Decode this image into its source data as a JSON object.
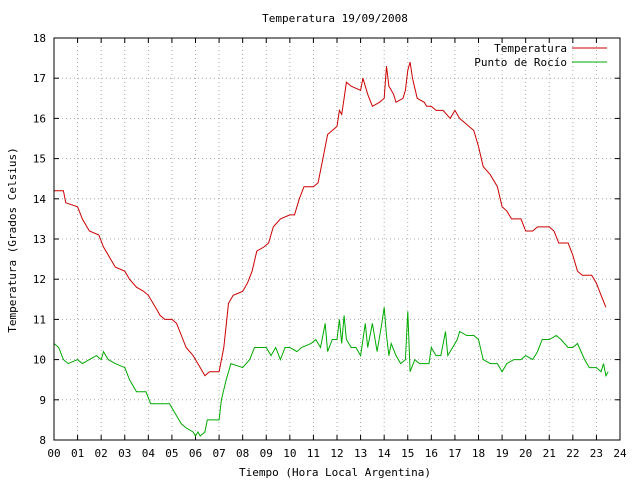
{
  "chart_data": {
    "type": "line",
    "title": "Temperatura 19/09/2008",
    "xlabel": "Tiempo (Hora Local Argentina)",
    "ylabel": "Temperatura (Grados Celsius)",
    "xlim": [
      0,
      24
    ],
    "ylim": [
      8,
      18
    ],
    "x_ticks": [
      "00",
      "01",
      "02",
      "03",
      "04",
      "05",
      "06",
      "07",
      "08",
      "09",
      "10",
      "11",
      "12",
      "13",
      "14",
      "15",
      "16",
      "17",
      "18",
      "19",
      "20",
      "21",
      "22",
      "23",
      "24"
    ],
    "y_ticks": [
      "8",
      "9",
      "10",
      "11",
      "12",
      "13",
      "14",
      "15",
      "16",
      "17",
      "18"
    ],
    "grid": true,
    "legend_position": "top-right",
    "series": [
      {
        "name": "Temperatura",
        "color": "#cc0000",
        "points": [
          [
            0.0,
            14.2
          ],
          [
            0.4,
            14.2
          ],
          [
            0.5,
            13.9
          ],
          [
            1.0,
            13.8
          ],
          [
            1.2,
            13.5
          ],
          [
            1.5,
            13.2
          ],
          [
            1.9,
            13.1
          ],
          [
            2.1,
            12.8
          ],
          [
            2.4,
            12.5
          ],
          [
            2.6,
            12.3
          ],
          [
            3.0,
            12.2
          ],
          [
            3.2,
            12.0
          ],
          [
            3.5,
            11.8
          ],
          [
            3.8,
            11.7
          ],
          [
            4.0,
            11.6
          ],
          [
            4.3,
            11.3
          ],
          [
            4.5,
            11.1
          ],
          [
            4.7,
            11.0
          ],
          [
            5.0,
            11.0
          ],
          [
            5.2,
            10.9
          ],
          [
            5.4,
            10.6
          ],
          [
            5.6,
            10.3
          ],
          [
            5.9,
            10.1
          ],
          [
            6.1,
            9.9
          ],
          [
            6.3,
            9.7
          ],
          [
            6.4,
            9.6
          ],
          [
            6.6,
            9.7
          ],
          [
            7.0,
            9.7
          ],
          [
            7.2,
            10.3
          ],
          [
            7.4,
            11.4
          ],
          [
            7.6,
            11.6
          ],
          [
            8.0,
            11.7
          ],
          [
            8.2,
            11.9
          ],
          [
            8.4,
            12.2
          ],
          [
            8.6,
            12.7
          ],
          [
            8.9,
            12.8
          ],
          [
            9.1,
            12.9
          ],
          [
            9.3,
            13.3
          ],
          [
            9.6,
            13.5
          ],
          [
            10.0,
            13.6
          ],
          [
            10.2,
            13.6
          ],
          [
            10.4,
            14.0
          ],
          [
            10.6,
            14.3
          ],
          [
            11.0,
            14.3
          ],
          [
            11.2,
            14.4
          ],
          [
            11.4,
            15.0
          ],
          [
            11.6,
            15.6
          ],
          [
            11.8,
            15.7
          ],
          [
            12.0,
            15.8
          ],
          [
            12.1,
            16.2
          ],
          [
            12.2,
            16.1
          ],
          [
            12.3,
            16.5
          ],
          [
            12.4,
            16.9
          ],
          [
            12.6,
            16.8
          ],
          [
            13.0,
            16.7
          ],
          [
            13.1,
            17.0
          ],
          [
            13.2,
            16.8
          ],
          [
            13.3,
            16.6
          ],
          [
            13.5,
            16.3
          ],
          [
            13.8,
            16.4
          ],
          [
            14.0,
            16.5
          ],
          [
            14.1,
            17.3
          ],
          [
            14.2,
            16.8
          ],
          [
            14.4,
            16.6
          ],
          [
            14.5,
            16.4
          ],
          [
            14.8,
            16.5
          ],
          [
            14.9,
            16.7
          ],
          [
            15.0,
            17.2
          ],
          [
            15.1,
            17.4
          ],
          [
            15.2,
            17.0
          ],
          [
            15.4,
            16.5
          ],
          [
            15.7,
            16.4
          ],
          [
            15.8,
            16.3
          ],
          [
            16.0,
            16.3
          ],
          [
            16.2,
            16.2
          ],
          [
            16.5,
            16.2
          ],
          [
            16.8,
            16.0
          ],
          [
            17.0,
            16.2
          ],
          [
            17.2,
            16.0
          ],
          [
            17.4,
            15.9
          ],
          [
            17.8,
            15.7
          ],
          [
            18.0,
            15.3
          ],
          [
            18.2,
            14.8
          ],
          [
            18.5,
            14.6
          ],
          [
            18.8,
            14.3
          ],
          [
            19.0,
            13.8
          ],
          [
            19.2,
            13.7
          ],
          [
            19.4,
            13.5
          ],
          [
            19.8,
            13.5
          ],
          [
            20.0,
            13.2
          ],
          [
            20.3,
            13.2
          ],
          [
            20.5,
            13.3
          ],
          [
            21.0,
            13.3
          ],
          [
            21.2,
            13.2
          ],
          [
            21.4,
            12.9
          ],
          [
            21.8,
            12.9
          ],
          [
            22.0,
            12.6
          ],
          [
            22.2,
            12.2
          ],
          [
            22.4,
            12.1
          ],
          [
            22.8,
            12.1
          ],
          [
            23.0,
            11.9
          ],
          [
            23.2,
            11.6
          ],
          [
            23.4,
            11.3
          ]
        ]
      },
      {
        "name": "Punto de Rocío",
        "color": "#00aa00",
        "points": [
          [
            0.0,
            10.4
          ],
          [
            0.2,
            10.3
          ],
          [
            0.4,
            10.0
          ],
          [
            0.6,
            9.9
          ],
          [
            1.0,
            10.0
          ],
          [
            1.2,
            9.9
          ],
          [
            1.5,
            10.0
          ],
          [
            1.8,
            10.1
          ],
          [
            2.0,
            10.0
          ],
          [
            2.1,
            10.2
          ],
          [
            2.3,
            10.0
          ],
          [
            2.6,
            9.9
          ],
          [
            3.0,
            9.8
          ],
          [
            3.2,
            9.5
          ],
          [
            3.5,
            9.2
          ],
          [
            3.9,
            9.2
          ],
          [
            4.1,
            8.9
          ],
          [
            4.5,
            8.9
          ],
          [
            4.9,
            8.9
          ],
          [
            5.0,
            8.8
          ],
          [
            5.2,
            8.6
          ],
          [
            5.4,
            8.4
          ],
          [
            5.6,
            8.3
          ],
          [
            5.9,
            8.2
          ],
          [
            6.0,
            8.1
          ],
          [
            6.1,
            8.2
          ],
          [
            6.2,
            8.1
          ],
          [
            6.4,
            8.2
          ],
          [
            6.5,
            8.5
          ],
          [
            7.0,
            8.5
          ],
          [
            7.1,
            9.0
          ],
          [
            7.3,
            9.5
          ],
          [
            7.5,
            9.9
          ],
          [
            8.0,
            9.8
          ],
          [
            8.3,
            10.0
          ],
          [
            8.5,
            10.3
          ],
          [
            9.0,
            10.3
          ],
          [
            9.2,
            10.1
          ],
          [
            9.4,
            10.3
          ],
          [
            9.6,
            10.0
          ],
          [
            9.8,
            10.3
          ],
          [
            10.0,
            10.3
          ],
          [
            10.3,
            10.2
          ],
          [
            10.5,
            10.3
          ],
          [
            10.9,
            10.4
          ],
          [
            11.1,
            10.5
          ],
          [
            11.3,
            10.3
          ],
          [
            11.5,
            10.9
          ],
          [
            11.6,
            10.2
          ],
          [
            11.8,
            10.5
          ],
          [
            12.0,
            10.5
          ],
          [
            12.1,
            11.0
          ],
          [
            12.2,
            10.4
          ],
          [
            12.3,
            11.1
          ],
          [
            12.4,
            10.5
          ],
          [
            12.6,
            10.3
          ],
          [
            12.8,
            10.3
          ],
          [
            13.0,
            10.1
          ],
          [
            13.2,
            10.9
          ],
          [
            13.3,
            10.3
          ],
          [
            13.5,
            10.9
          ],
          [
            13.7,
            10.2
          ],
          [
            13.9,
            10.9
          ],
          [
            14.0,
            11.3
          ],
          [
            14.1,
            10.6
          ],
          [
            14.2,
            10.1
          ],
          [
            14.3,
            10.4
          ],
          [
            14.5,
            10.1
          ],
          [
            14.7,
            9.9
          ],
          [
            14.9,
            10.0
          ],
          [
            15.0,
            11.2
          ],
          [
            15.1,
            9.7
          ],
          [
            15.3,
            10.0
          ],
          [
            15.5,
            9.9
          ],
          [
            15.9,
            9.9
          ],
          [
            16.0,
            10.3
          ],
          [
            16.2,
            10.1
          ],
          [
            16.4,
            10.1
          ],
          [
            16.6,
            10.7
          ],
          [
            16.7,
            10.1
          ],
          [
            16.9,
            10.3
          ],
          [
            17.1,
            10.5
          ],
          [
            17.2,
            10.7
          ],
          [
            17.5,
            10.6
          ],
          [
            17.8,
            10.6
          ],
          [
            18.0,
            10.5
          ],
          [
            18.2,
            10.0
          ],
          [
            18.5,
            9.9
          ],
          [
            18.8,
            9.9
          ],
          [
            19.0,
            9.7
          ],
          [
            19.2,
            9.9
          ],
          [
            19.5,
            10.0
          ],
          [
            19.8,
            10.0
          ],
          [
            20.0,
            10.1
          ],
          [
            20.3,
            10.0
          ],
          [
            20.5,
            10.2
          ],
          [
            20.7,
            10.5
          ],
          [
            21.0,
            10.5
          ],
          [
            21.3,
            10.6
          ],
          [
            21.5,
            10.5
          ],
          [
            21.8,
            10.3
          ],
          [
            22.0,
            10.3
          ],
          [
            22.2,
            10.4
          ],
          [
            22.5,
            10.0
          ],
          [
            22.7,
            9.8
          ],
          [
            23.0,
            9.8
          ],
          [
            23.2,
            9.7
          ],
          [
            23.3,
            9.9
          ],
          [
            23.4,
            9.6
          ],
          [
            23.5,
            9.7
          ]
        ]
      }
    ]
  }
}
